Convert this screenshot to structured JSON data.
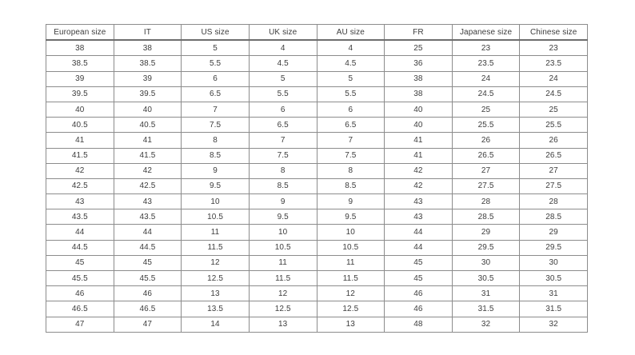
{
  "colors": {
    "text": "#3d3d3d",
    "border": "#8c8c8c",
    "header_underline": "#6e6e6e",
    "background": "#ffffff"
  },
  "table": {
    "headers": [
      "European size",
      "IT",
      "US size",
      "UK size",
      "AU size",
      "FR",
      "Japanese size",
      "Chinese size"
    ],
    "rows": [
      [
        "38",
        "38",
        "5",
        "4",
        "4",
        "25",
        "23",
        "23"
      ],
      [
        "38.5",
        "38.5",
        "5.5",
        "4.5",
        "4.5",
        "36",
        "23.5",
        "23.5"
      ],
      [
        "39",
        "39",
        "6",
        "5",
        "5",
        "38",
        "24",
        "24"
      ],
      [
        "39.5",
        "39.5",
        "6.5",
        "5.5",
        "5.5",
        "38",
        "24.5",
        "24.5"
      ],
      [
        "40",
        "40",
        "7",
        "6",
        "6",
        "40",
        "25",
        "25"
      ],
      [
        "40.5",
        "40.5",
        "7.5",
        "6.5",
        "6.5",
        "40",
        "25.5",
        "25.5"
      ],
      [
        "41",
        "41",
        "8",
        "7",
        "7",
        "41",
        "26",
        "26"
      ],
      [
        "41.5",
        "41.5",
        "8.5",
        "7.5",
        "7.5",
        "41",
        "26.5",
        "26.5"
      ],
      [
        "42",
        "42",
        "9",
        "8",
        "8",
        "42",
        "27",
        "27"
      ],
      [
        "42.5",
        "42.5",
        "9.5",
        "8.5",
        "8.5",
        "42",
        "27.5",
        "27.5"
      ],
      [
        "43",
        "43",
        "10",
        "9",
        "9",
        "43",
        "28",
        "28"
      ],
      [
        "43.5",
        "43.5",
        "10.5",
        "9.5",
        "9.5",
        "43",
        "28.5",
        "28.5"
      ],
      [
        "44",
        "44",
        "11",
        "10",
        "10",
        "44",
        "29",
        "29"
      ],
      [
        "44.5",
        "44.5",
        "11.5",
        "10.5",
        "10.5",
        "44",
        "29.5",
        "29.5"
      ],
      [
        "45",
        "45",
        "12",
        "11",
        "11",
        "45",
        "30",
        "30"
      ],
      [
        "45.5",
        "45.5",
        "12.5",
        "11.5",
        "11.5",
        "45",
        "30.5",
        "30.5"
      ],
      [
        "46",
        "46",
        "13",
        "12",
        "12",
        "46",
        "31",
        "31"
      ],
      [
        "46.5",
        "46.5",
        "13.5",
        "12.5",
        "12.5",
        "46",
        "31.5",
        "31.5"
      ],
      [
        "47",
        "47",
        "14",
        "13",
        "13",
        "48",
        "32",
        "32"
      ]
    ]
  }
}
